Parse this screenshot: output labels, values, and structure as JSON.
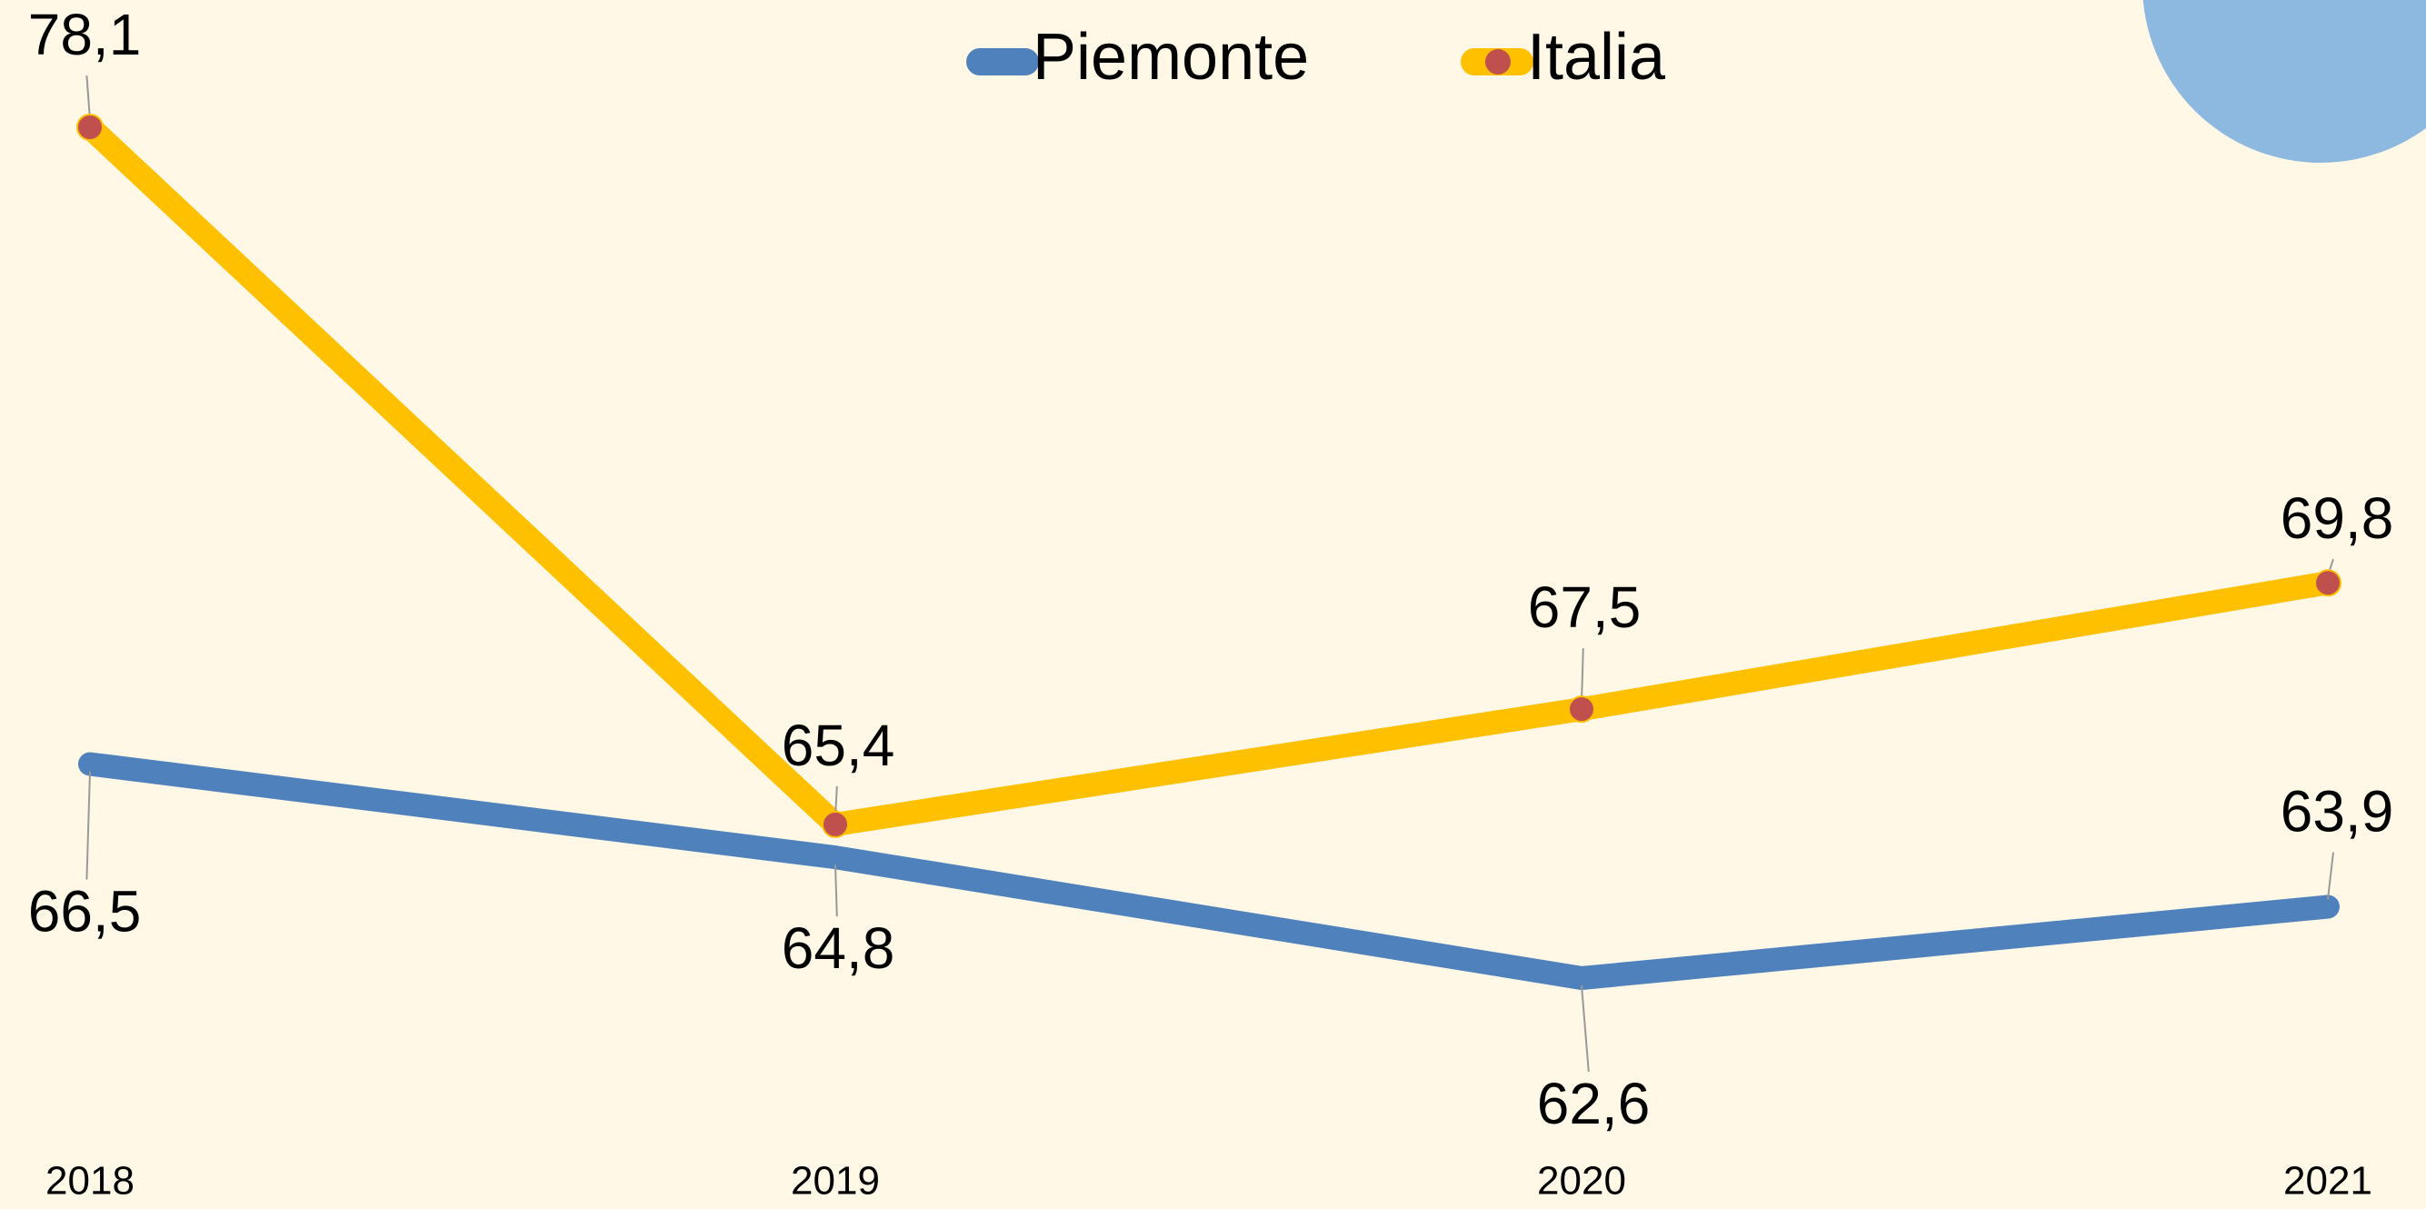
{
  "chart_data": {
    "type": "line",
    "categories": [
      "2018",
      "2019",
      "2020",
      "2021"
    ],
    "series": [
      {
        "name": "Piemonte",
        "color": "#4f81bd",
        "values": [
          66.5,
          64.8,
          62.6,
          63.9
        ],
        "value_labels": [
          "66,5",
          "64,8",
          "62,6",
          "63,9"
        ]
      },
      {
        "name": "Italia",
        "color": "#ffc000",
        "marker_color": "#c0504d",
        "values": [
          78.1,
          65.4,
          67.5,
          69.8
        ],
        "value_labels": [
          "78,1",
          "65,4",
          "67,5",
          "69,8"
        ]
      }
    ]
  }
}
